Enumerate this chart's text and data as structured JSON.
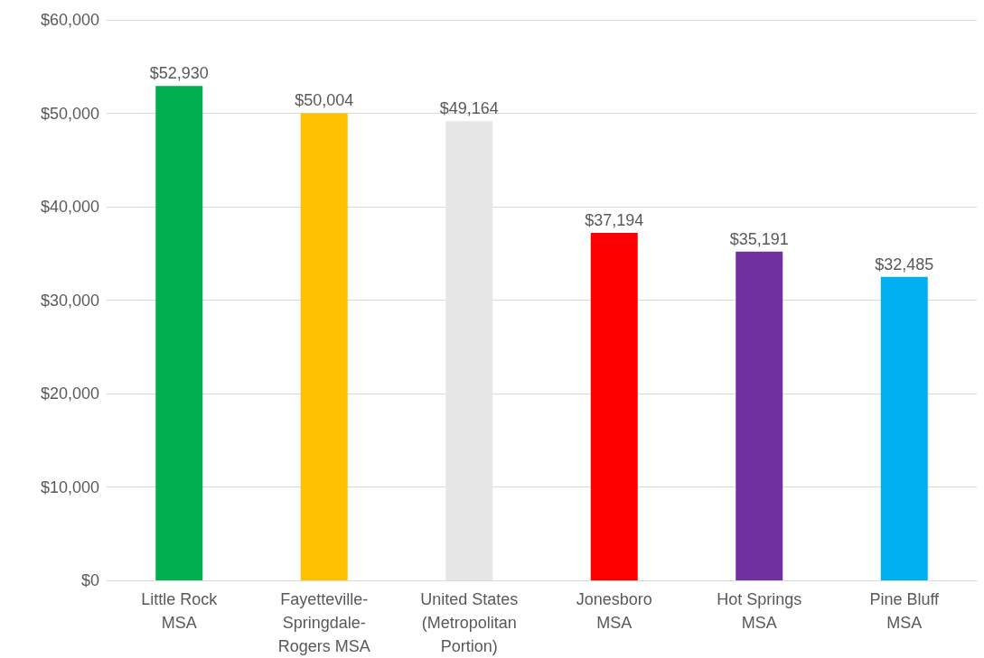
{
  "chart_data": {
    "type": "bar",
    "categories": [
      "Little Rock MSA",
      "Fayetteville-Springdale-Rogers MSA",
      "United States (Metropolitan Portion)",
      "Jonesboro MSA",
      "Hot Springs MSA",
      "Pine Bluff MSA"
    ],
    "values": [
      52930,
      50004,
      49164,
      37194,
      35191,
      32485
    ],
    "colors": [
      "#00b050",
      "#ffc000",
      "#e7e6e6",
      "#ff0000",
      "#7030a0",
      "#00b0f0"
    ],
    "value_labels": [
      "$52,930",
      "$50,004",
      "$49,164",
      "$37,194",
      "$35,191",
      "$32,485"
    ],
    "ylim": [
      0,
      60000
    ],
    "yticks": [
      {
        "value": 0,
        "label": "$0"
      },
      {
        "value": 10000,
        "label": "$10,000"
      },
      {
        "value": 20000,
        "label": "$20,000"
      },
      {
        "value": 30000,
        "label": "$30,000"
      },
      {
        "value": 40000,
        "label": "$40,000"
      },
      {
        "value": 50000,
        "label": "$50,000"
      },
      {
        "value": 60000,
        "label": "$60,000"
      }
    ],
    "grid": "y"
  }
}
